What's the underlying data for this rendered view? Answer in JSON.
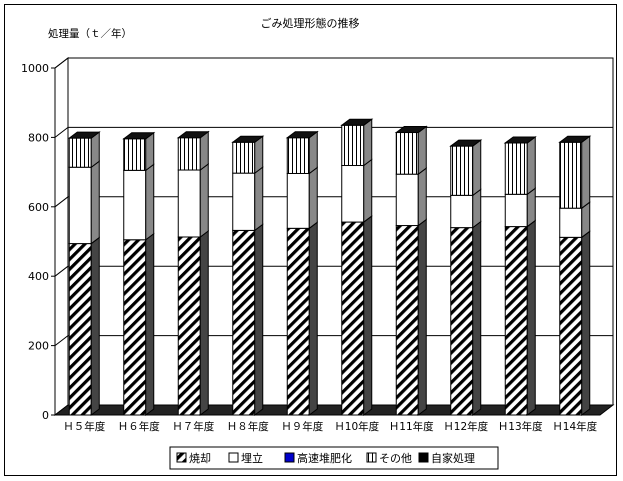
{
  "chart_data": {
    "type": "bar",
    "stacked": true,
    "three_d": true,
    "title": "ごみ処理形態の推移",
    "ylabel": "処理量（ｔ／年）",
    "xlabel": "",
    "ylim": [
      0,
      1000
    ],
    "yticks": [
      "0",
      "200",
      "400",
      "600",
      "800",
      "1000"
    ],
    "grid": true,
    "legend_position": "bottom",
    "categories": [
      "Ｈ５年度",
      "Ｈ６年度",
      "Ｈ７年度",
      "Ｈ８年度",
      "Ｈ９年度",
      "Ｈ10年度",
      "Ｈ11年度",
      "Ｈ12年度",
      "Ｈ13年度",
      "Ｈ14年度"
    ],
    "series": [
      {
        "name": "焼却",
        "pattern": "diagonal-hatch",
        "color": "#000000",
        "values": [
          494,
          505,
          513,
          532,
          538,
          556,
          546,
          540,
          543,
          512
        ]
      },
      {
        "name": "埋立",
        "pattern": "solid",
        "color": "#ffffff",
        "values": [
          220,
          200,
          193,
          165,
          158,
          163,
          148,
          93,
          93,
          84
        ]
      },
      {
        "name": "高速堆肥化",
        "pattern": "solid",
        "color": "#0000cc",
        "values": [
          0,
          0,
          0,
          0,
          0,
          0,
          0,
          0,
          0,
          0
        ]
      },
      {
        "name": "その他",
        "pattern": "vertical-lines",
        "color": "#000000",
        "values": [
          84,
          91,
          93,
          89,
          103,
          116,
          120,
          142,
          148,
          190
        ]
      },
      {
        "name": "自家処理",
        "pattern": "solid",
        "color": "#000000",
        "values": [
          0,
          0,
          0,
          0,
          0,
          0,
          0,
          0,
          0,
          0
        ]
      }
    ]
  }
}
